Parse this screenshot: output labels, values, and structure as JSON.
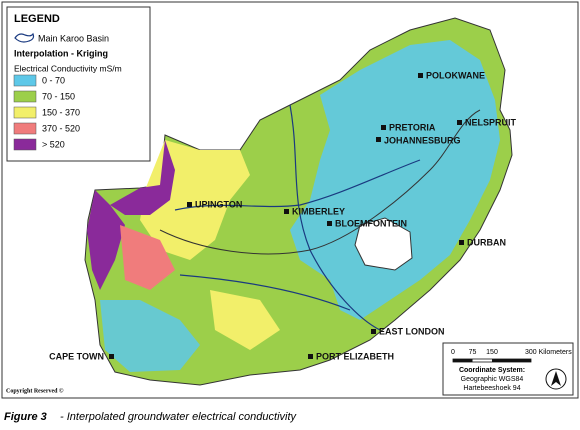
{
  "legend": {
    "title": "LEGEND",
    "basin": "Main Karoo Basin",
    "method": "Interpolation - Kriging",
    "measure": "Electrical Conductivity mS/m",
    "classes": [
      {
        "label": "0 - 70",
        "color": "#5ec8e8"
      },
      {
        "label": "70 - 150",
        "color": "#9ccf4a"
      },
      {
        "label": "150 - 370",
        "color": "#f2ef6a"
      },
      {
        "label": "370 - 520",
        "color": "#f07c7c"
      },
      {
        "label": "> 520",
        "color": "#8a2a9a"
      }
    ]
  },
  "cities": [
    "POLOKWANE",
    "PRETORIA",
    "JOHANNESBURG",
    "NELSPRUIT",
    "UPINGTON",
    "KIMBERLEY",
    "BLOEMFONTEIN",
    "DURBAN",
    "EAST LONDON",
    "PORT ELIZABETH",
    "CAPE TOWN"
  ],
  "scale": {
    "labels": [
      "0",
      "75",
      "150",
      "300 Kilometers"
    ]
  },
  "coordinate_system": {
    "title": "Coordinate System:",
    "lines": [
      "Geographic WGS84",
      "Hartebeeshoek 94"
    ]
  },
  "copyright": "Copyright Reserved ©",
  "caption": {
    "figure": "Figure 3",
    "text": "- Interpolated groundwater electrical conductivity"
  }
}
